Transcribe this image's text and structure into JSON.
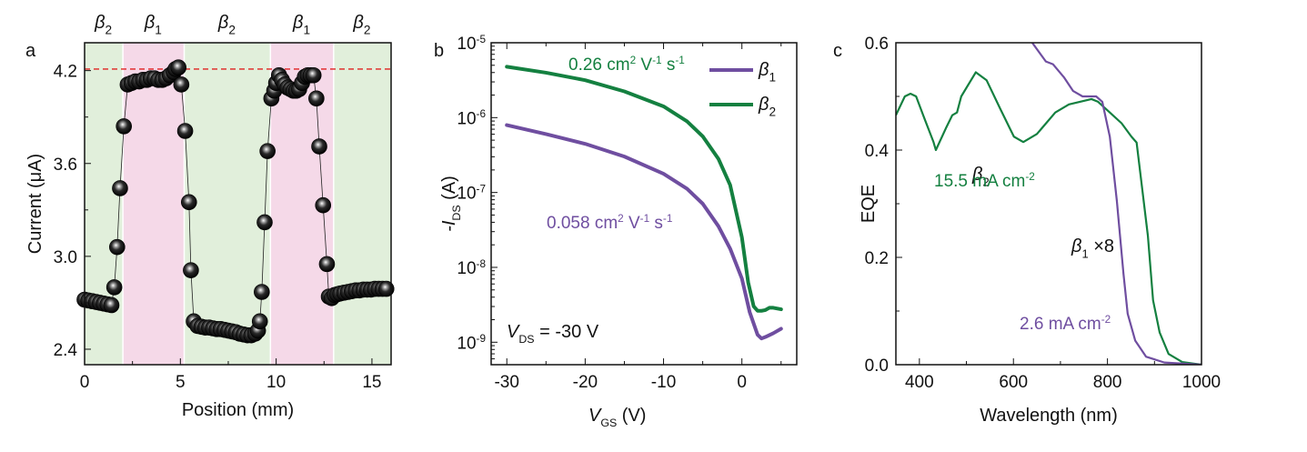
{
  "colors": {
    "beta1": "#6f4ea0",
    "beta2": "#148040",
    "pink_band": "#f5d9e8",
    "green_band": "#e1efdb",
    "dashed_line": "#e02020",
    "dots": "#111111"
  },
  "chart_data": [
    {
      "panel": "a",
      "type": "scatter",
      "xlabel": "Position (mm)",
      "ylabel": "Current (μA)",
      "xlim": [
        0,
        16
      ],
      "ylim": [
        2.3,
        4.38
      ],
      "xticks": [
        0,
        5,
        10,
        15
      ],
      "yticks": [
        2.4,
        3.0,
        3.6,
        4.2
      ],
      "reference_line": {
        "y": 4.21,
        "style": "dashed",
        "color": "red"
      },
      "regions": [
        {
          "label": "β",
          "sub": "2",
          "x0": 0,
          "x1": 2.0,
          "phase": "beta2"
        },
        {
          "label": "β",
          "sub": "1",
          "x0": 2.0,
          "x1": 5.2,
          "phase": "beta1"
        },
        {
          "label": "β",
          "sub": "2",
          "x0": 5.2,
          "x1": 9.7,
          "phase": "beta2"
        },
        {
          "label": "β",
          "sub": "1",
          "x0": 9.7,
          "x1": 13.0,
          "phase": "beta1"
        },
        {
          "label": "β",
          "sub": "2",
          "x0": 13.0,
          "x1": 16,
          "phase": "beta2"
        }
      ],
      "x": [
        0.0,
        0.2,
        0.4,
        0.6,
        0.8,
        1.0,
        1.2,
        1.4,
        1.55,
        1.7,
        1.85,
        2.05,
        2.25,
        2.45,
        2.65,
        2.85,
        3.05,
        3.25,
        3.45,
        3.65,
        3.85,
        4.05,
        4.25,
        4.45,
        4.65,
        4.75,
        4.9,
        5.05,
        5.25,
        5.45,
        5.55,
        5.7,
        5.9,
        6.1,
        6.3,
        6.5,
        6.7,
        6.9,
        7.1,
        7.3,
        7.5,
        7.7,
        7.9,
        8.1,
        8.3,
        8.5,
        8.7,
        8.9,
        9.05,
        9.15,
        9.25,
        9.4,
        9.55,
        9.75,
        9.9,
        10.0,
        10.15,
        10.3,
        10.45,
        10.6,
        10.75,
        10.9,
        11.05,
        11.2,
        11.35,
        11.5,
        11.65,
        11.8,
        11.95,
        12.1,
        12.25,
        12.45,
        12.65,
        12.75,
        12.9,
        13.05,
        13.2,
        13.35,
        13.55,
        13.75,
        13.95,
        14.15,
        14.35,
        14.55,
        14.75,
        14.95,
        15.15,
        15.35,
        15.55,
        15.75
      ],
      "values": [
        2.72,
        2.715,
        2.71,
        2.705,
        2.7,
        2.695,
        2.69,
        2.685,
        2.8,
        3.06,
        3.44,
        3.84,
        4.11,
        4.12,
        4.13,
        4.13,
        4.14,
        4.14,
        4.15,
        4.15,
        4.14,
        4.14,
        4.15,
        4.17,
        4.19,
        4.21,
        4.22,
        4.11,
        3.81,
        3.35,
        2.91,
        2.58,
        2.55,
        2.545,
        2.54,
        2.54,
        2.535,
        2.53,
        2.53,
        2.525,
        2.52,
        2.515,
        2.51,
        2.5,
        2.495,
        2.49,
        2.49,
        2.5,
        2.52,
        2.58,
        2.77,
        3.22,
        3.68,
        4.02,
        4.07,
        4.12,
        4.17,
        4.14,
        4.11,
        4.09,
        4.08,
        4.07,
        4.07,
        4.08,
        4.12,
        4.16,
        4.17,
        4.17,
        4.17,
        4.02,
        3.71,
        3.33,
        2.95,
        2.74,
        2.73,
        2.75,
        2.755,
        2.76,
        2.765,
        2.77,
        2.775,
        2.78,
        2.78,
        2.785,
        2.785,
        2.785,
        2.79,
        2.79,
        2.79,
        2.79
      ]
    },
    {
      "panel": "b",
      "type": "line",
      "xlabel": "V",
      "xlabel_sub": "GS",
      "xlabel_unit": " (V)",
      "ylabel": "-I",
      "ylabel_sub": "DS",
      "ylabel_unit": " (A)",
      "yscale": "log",
      "xlim": [
        -32,
        7
      ],
      "ylim_exp": [
        -9.3,
        -5
      ],
      "xticks": [
        -30,
        -20,
        -10,
        0
      ],
      "yticks_exp": [
        -5,
        -6,
        -7,
        -8,
        -9
      ],
      "annotation": {
        "text_v": "V",
        "text_sub": "DS",
        "text_rest": " = -30 V"
      },
      "series": [
        {
          "name": "β",
          "sub": "1",
          "phase": "beta1",
          "mobility_label": "0.058 cm² V⁻¹ s⁻¹",
          "x": [
            -30,
            -25,
            -20,
            -15,
            -10,
            -7,
            -5,
            -3,
            -1.5,
            0,
            1,
            2,
            2.5,
            3,
            4,
            5
          ],
          "y_exp": [
            -6.1,
            -6.22,
            -6.35,
            -6.52,
            -6.75,
            -6.95,
            -7.15,
            -7.45,
            -7.75,
            -8.15,
            -8.6,
            -8.9,
            -8.95,
            -8.93,
            -8.88,
            -8.82
          ]
        },
        {
          "name": "β",
          "sub": "2",
          "phase": "beta2",
          "mobility_label": "0.26 cm² V⁻¹ s⁻¹",
          "x": [
            -30,
            -25,
            -20,
            -15,
            -10,
            -7,
            -5,
            -3,
            -1.5,
            0,
            0.8,
            1.5,
            2,
            2.5,
            3,
            3.5,
            4,
            5
          ],
          "y_exp": [
            -5.32,
            -5.4,
            -5.5,
            -5.65,
            -5.85,
            -6.05,
            -6.25,
            -6.55,
            -6.9,
            -7.6,
            -8.2,
            -8.52,
            -8.58,
            -8.58,
            -8.57,
            -8.54,
            -8.54,
            -8.56
          ]
        }
      ],
      "legend": "top-right"
    },
    {
      "panel": "c",
      "type": "line",
      "xlabel": "Wavelength (nm)",
      "ylabel": "EQE",
      "xlim": [
        350,
        1000
      ],
      "ylim": [
        0,
        0.6
      ],
      "xticks": [
        400,
        600,
        800,
        1000
      ],
      "yticks": [
        "0.0",
        "0.2",
        "0.4",
        "0.6"
      ],
      "series": [
        {
          "name": "β",
          "sub": "2",
          "phase": "beta2",
          "annotation": "15.5 mA cm⁻²",
          "x": [
            350,
            369,
            381,
            393,
            408,
            430,
            435,
            456,
            470,
            480,
            489,
            520,
            543,
            573,
            601,
            621,
            650,
            689,
            718,
            766,
            780,
            805,
            830,
            851,
            862,
            886,
            897,
            911,
            930,
            959,
            1000
          ],
          "y": [
            0.465,
            0.5,
            0.505,
            0.5,
            0.465,
            0.415,
            0.4,
            0.44,
            0.465,
            0.47,
            0.5,
            0.545,
            0.53,
            0.475,
            0.425,
            0.415,
            0.43,
            0.47,
            0.485,
            0.495,
            0.49,
            0.47,
            0.45,
            0.425,
            0.414,
            0.24,
            0.12,
            0.06,
            0.02,
            0.005,
            0.0
          ]
        },
        {
          "name": "β",
          "sub": "1",
          "suffix": " ×8",
          "phase": "beta1",
          "annotation": "2.6 mA cm⁻²",
          "x": [
            640,
            669,
            684,
            708,
            727,
            747,
            776,
            789,
            805,
            820,
            834,
            843,
            859,
            882,
            921,
            1000
          ],
          "y": [
            0.6,
            0.565,
            0.56,
            0.535,
            0.51,
            0.5,
            0.5,
            0.49,
            0.425,
            0.305,
            0.17,
            0.095,
            0.045,
            0.015,
            0.004,
            0.0
          ]
        }
      ]
    }
  ],
  "panel_labels": [
    "a",
    "b",
    "c"
  ]
}
